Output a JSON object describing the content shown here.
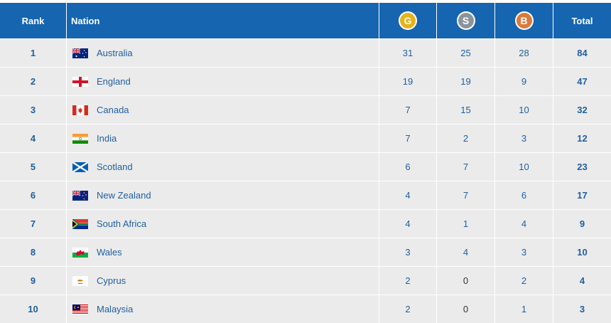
{
  "header": {
    "rank": "Rank",
    "nation": "Nation",
    "gold": "G",
    "silver": "S",
    "bronze": "B",
    "total": "Total"
  },
  "colors": {
    "header_bg": "#1565b0",
    "row_bg": "#ebebeb",
    "text_blue": "#1f5f9e",
    "gold": "#e8b21a",
    "silver": "#8b949c",
    "bronze": "#d97b3c"
  },
  "rows": [
    {
      "rank": "1",
      "nation": "Australia",
      "flag": "australia-flag",
      "gold": "31",
      "silver": "25",
      "bronze": "28",
      "total": "84"
    },
    {
      "rank": "2",
      "nation": "England",
      "flag": "england-flag",
      "gold": "19",
      "silver": "19",
      "bronze": "9",
      "total": "47"
    },
    {
      "rank": "3",
      "nation": "Canada",
      "flag": "canada-flag",
      "gold": "7",
      "silver": "15",
      "bronze": "10",
      "total": "32"
    },
    {
      "rank": "4",
      "nation": "India",
      "flag": "india-flag",
      "gold": "7",
      "silver": "2",
      "bronze": "3",
      "total": "12"
    },
    {
      "rank": "5",
      "nation": "Scotland",
      "flag": "scotland-flag",
      "gold": "6",
      "silver": "7",
      "bronze": "10",
      "total": "23"
    },
    {
      "rank": "6",
      "nation": "New Zealand",
      "flag": "new-zealand-flag",
      "gold": "4",
      "silver": "7",
      "bronze": "6",
      "total": "17"
    },
    {
      "rank": "7",
      "nation": "South Africa",
      "flag": "south-africa-flag",
      "gold": "4",
      "silver": "1",
      "bronze": "4",
      "total": "9"
    },
    {
      "rank": "8",
      "nation": "Wales",
      "flag": "wales-flag",
      "gold": "3",
      "silver": "4",
      "bronze": "3",
      "total": "10"
    },
    {
      "rank": "9",
      "nation": "Cyprus",
      "flag": "cyprus-flag",
      "gold": "2",
      "silver": "0",
      "bronze": "2",
      "total": "4"
    },
    {
      "rank": "10",
      "nation": "Malaysia",
      "flag": "malaysia-flag",
      "gold": "2",
      "silver": "0",
      "bronze": "1",
      "total": "3"
    }
  ]
}
